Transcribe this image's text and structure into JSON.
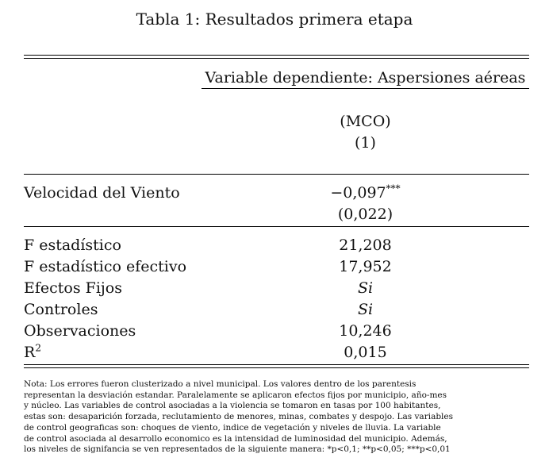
{
  "title": "Tabla 1: Resultados primera etapa",
  "header": {
    "dependent_variable": "Variable dependiente: Aspersiones aéreas",
    "method": "(MCO)",
    "column_number": "(1)"
  },
  "coefficient": {
    "label": "Velocidad del Viento",
    "estimate": "−0,097",
    "stars": "***",
    "std_error": "(0,022)"
  },
  "stats": [
    {
      "label": "F estadístico",
      "value": "21,208",
      "italic": false
    },
    {
      "label": "F estadístico efectivo",
      "value": "17,952",
      "italic": false
    },
    {
      "label": "Efectos Fijos",
      "value": "Si",
      "italic": true
    },
    {
      "label": "Controles",
      "value": "Si",
      "italic": true
    },
    {
      "label": "Observaciones",
      "value": "10,246",
      "italic": false
    },
    {
      "label": "R",
      "label_sup": "2",
      "value": "0,015",
      "italic": false
    }
  ],
  "note_lines": [
    "Nota: Los errores fueron clusterizado a nivel municipal. Los valores dentro de los parentesis",
    "representan la desviación estandar. Paralelamente se aplicaron efectos fijos por municipio, año-mes",
    "y núcleo. Las variables de control asociadas a la violencia se tomaron en tasas por 100 habitantes,",
    "estas son: desaparición forzada, reclutamiento de menores, minas, combates y despojo. Las variables",
    "de control geograficas son: choques de viento, indice de vegetación y niveles de lluvia. La variable",
    "de control asociada al desarrollo economico es la intensidad de luminosidad del municipio. Además,",
    "los niveles de signifancia se ven representados de la siguiente manera: *p<0,1; **p<0,05; ***p<0,01"
  ]
}
